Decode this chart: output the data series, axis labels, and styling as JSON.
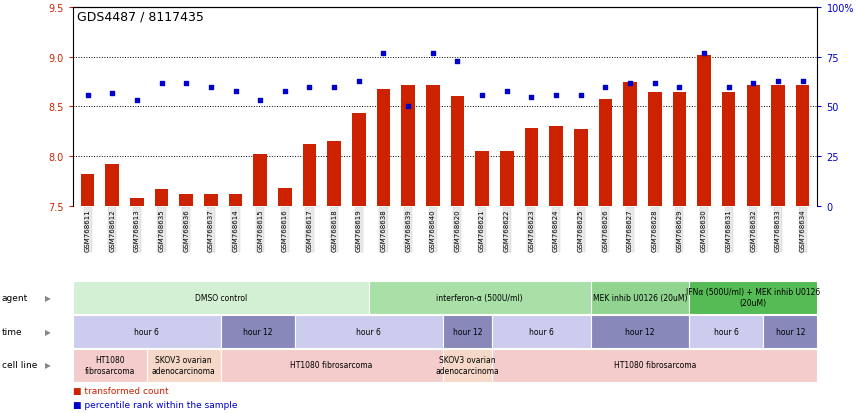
{
  "title": "GDS4487 / 8117435",
  "samples": [
    "GSM768611",
    "GSM768612",
    "GSM768613",
    "GSM768635",
    "GSM768636",
    "GSM768637",
    "GSM768614",
    "GSM768615",
    "GSM768616",
    "GSM768617",
    "GSM768618",
    "GSM768619",
    "GSM768638",
    "GSM768639",
    "GSM768640",
    "GSM768620",
    "GSM768621",
    "GSM768622",
    "GSM768623",
    "GSM768624",
    "GSM768625",
    "GSM768626",
    "GSM768627",
    "GSM768628",
    "GSM768629",
    "GSM768630",
    "GSM768631",
    "GSM768632",
    "GSM768633",
    "GSM768634"
  ],
  "bar_values": [
    7.82,
    7.92,
    7.58,
    7.67,
    7.62,
    7.62,
    7.62,
    8.02,
    7.68,
    8.12,
    8.15,
    8.43,
    8.68,
    8.72,
    8.72,
    8.61,
    8.05,
    8.05,
    8.28,
    8.3,
    8.27,
    8.58,
    8.75,
    8.65,
    8.65,
    9.02,
    8.65,
    8.72,
    8.72,
    8.72
  ],
  "dot_values_pct": [
    56,
    57,
    53,
    62,
    62,
    60,
    58,
    53,
    58,
    60,
    60,
    63,
    77,
    50,
    77,
    73,
    56,
    58,
    55,
    56,
    56,
    60,
    62,
    62,
    60,
    77,
    60,
    62,
    63,
    63
  ],
  "ylim_left": [
    7.5,
    9.5
  ],
  "ylim_right": [
    0,
    100
  ],
  "yticks_left": [
    7.5,
    8.0,
    8.5,
    9.0,
    9.5
  ],
  "yticks_right": [
    0,
    25,
    50,
    75,
    100
  ],
  "bar_color": "#cc2200",
  "dot_color": "#0000cc",
  "grid_lines": [
    8.0,
    8.5,
    9.0
  ],
  "agent_groups": [
    {
      "label": "DMSO control",
      "start": 0,
      "end": 12,
      "color": "#d4f0d4"
    },
    {
      "label": "interferon-α (500U/ml)",
      "start": 12,
      "end": 21,
      "color": "#a8e0a8"
    },
    {
      "label": "MEK inhib U0126 (20uM)",
      "start": 21,
      "end": 25,
      "color": "#90d490"
    },
    {
      "label": "IFNα (500U/ml) + MEK inhib U0126\n(20uM)",
      "start": 25,
      "end": 30,
      "color": "#55bb55"
    }
  ],
  "time_groups": [
    {
      "label": "hour 6",
      "start": 0,
      "end": 6,
      "color": "#ccccee"
    },
    {
      "label": "hour 12",
      "start": 6,
      "end": 9,
      "color": "#8888bb"
    },
    {
      "label": "hour 6",
      "start": 9,
      "end": 15,
      "color": "#ccccee"
    },
    {
      "label": "hour 12",
      "start": 15,
      "end": 17,
      "color": "#8888bb"
    },
    {
      "label": "hour 6",
      "start": 17,
      "end": 21,
      "color": "#ccccee"
    },
    {
      "label": "hour 12",
      "start": 21,
      "end": 25,
      "color": "#8888bb"
    },
    {
      "label": "hour 6",
      "start": 25,
      "end": 28,
      "color": "#ccccee"
    },
    {
      "label": "hour 12",
      "start": 28,
      "end": 30,
      "color": "#8888bb"
    }
  ],
  "cell_groups": [
    {
      "label": "HT1080\nfibrosarcoma",
      "start": 0,
      "end": 3,
      "color": "#f5cccc"
    },
    {
      "label": "SKOV3 ovarian\nadenocarcinoma",
      "start": 3,
      "end": 6,
      "color": "#f5d8c8"
    },
    {
      "label": "HT1080 fibrosarcoma",
      "start": 6,
      "end": 15,
      "color": "#f5cccc"
    },
    {
      "label": "SKOV3 ovarian\nadenocarcinoma",
      "start": 15,
      "end": 17,
      "color": "#f5d8c8"
    },
    {
      "label": "HT1080 fibrosarcoma",
      "start": 17,
      "end": 30,
      "color": "#f5cccc"
    }
  ],
  "row_labels": [
    "agent",
    "time",
    "cell line"
  ],
  "legend_items": [
    {
      "label": "transformed count",
      "color": "#cc2200"
    },
    {
      "label": "percentile rank within the sample",
      "color": "#0000cc"
    }
  ]
}
